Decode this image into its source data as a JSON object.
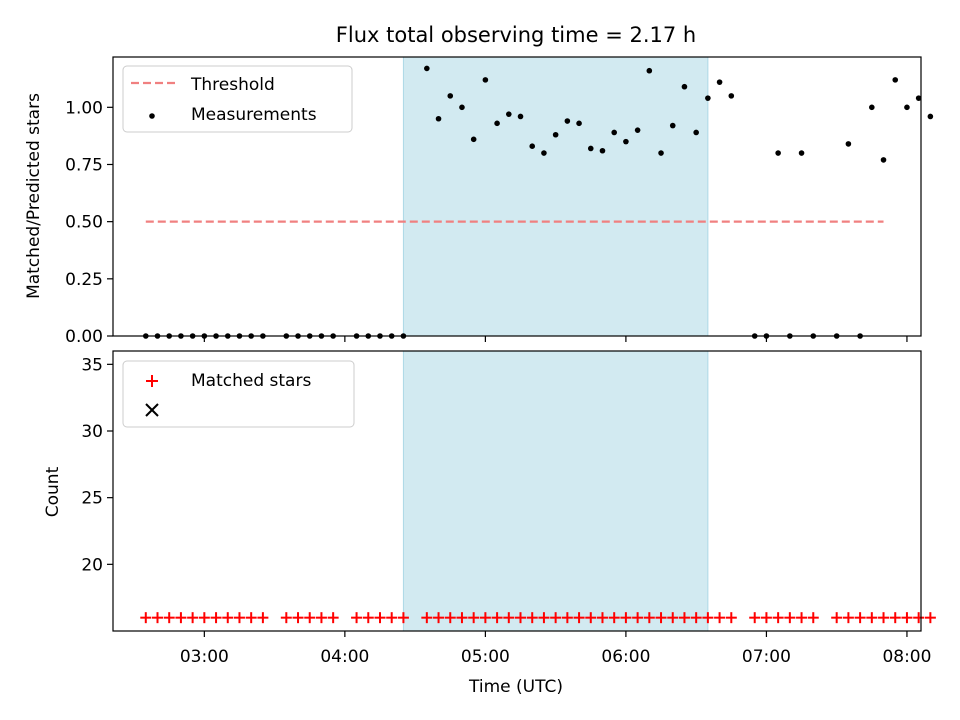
{
  "title": "Flux total observing time = 2.17 h",
  "chart_data": [
    {
      "type": "scatter",
      "ylabel": "Matched/Predicted stars",
      "ylim": [
        0,
        1.22
      ],
      "yticks": [
        0.0,
        0.25,
        0.5,
        0.75,
        1.0
      ],
      "ytick_labels": [
        "0.00",
        "0.25",
        "0.50",
        "0.75",
        "1.00"
      ],
      "legend_position": "upper-left",
      "shaded_interval": {
        "start": "04:25",
        "end": "06:35",
        "color": "#add8e6"
      },
      "threshold": {
        "name": "Threshold",
        "value": 0.5,
        "x_start": "02:35",
        "x_end": "07:50",
        "color": "#f08080",
        "style": "dashed"
      },
      "series": [
        {
          "name": "Measurements",
          "color": "#000000",
          "marker": "dot",
          "x": [
            "02:35",
            "02:40",
            "02:45",
            "02:50",
            "02:55",
            "03:00",
            "03:05",
            "03:10",
            "03:15",
            "03:20",
            "03:25",
            "03:35",
            "03:40",
            "03:45",
            "03:50",
            "03:55",
            "04:05",
            "04:10",
            "04:15",
            "04:20",
            "04:25",
            "04:35",
            "04:40",
            "04:45",
            "04:50",
            "04:55",
            "05:00",
            "05:05",
            "05:10",
            "05:15",
            "05:20",
            "05:25",
            "05:30",
            "05:35",
            "05:40",
            "05:45",
            "05:50",
            "05:55",
            "06:00",
            "06:05",
            "06:10",
            "06:15",
            "06:20",
            "06:25",
            "06:30",
            "06:35",
            "06:40",
            "06:45",
            "06:55",
            "07:00",
            "07:05",
            "07:10",
            "07:15",
            "07:20",
            "07:30",
            "07:35",
            "07:40",
            "07:45",
            "07:50",
            "07:55",
            "08:00",
            "08:05",
            "08:10"
          ],
          "y": [
            0,
            0,
            0,
            0,
            0,
            0,
            0,
            0,
            0,
            0,
            0,
            0,
            0,
            0,
            0,
            0,
            0,
            0,
            0,
            0,
            0,
            1.17,
            0.95,
            1.05,
            1.0,
            0.86,
            1.12,
            0.93,
            0.97,
            0.96,
            0.83,
            0.8,
            0.88,
            0.94,
            0.93,
            0.82,
            0.81,
            0.89,
            0.85,
            0.9,
            1.16,
            0.8,
            0.92,
            1.09,
            0.89,
            1.04,
            1.11,
            1.05,
            0,
            0,
            0.8,
            0,
            0.8,
            0,
            0,
            0.84,
            0,
            1.0,
            0.77,
            1.12,
            1.0,
            1.04,
            0.96
          ]
        }
      ]
    },
    {
      "type": "scatter",
      "xlabel": "Time (UTC)",
      "ylabel": "Count",
      "ylim": [
        15,
        36
      ],
      "yticks": [
        20,
        25,
        30,
        35
      ],
      "xticks": [
        "03:00",
        "04:00",
        "05:00",
        "06:00",
        "07:00",
        "08:00"
      ],
      "xlim": [
        "02:21",
        "08:06"
      ],
      "legend_position": "upper-left",
      "shaded_interval": {
        "start": "04:25",
        "end": "06:35",
        "color": "#add8e6"
      },
      "series": [
        {
          "name": "Matched stars",
          "color": "#ff0000",
          "marker": "plus",
          "x": [
            "02:35",
            "02:40",
            "02:45",
            "02:50",
            "02:55",
            "03:00",
            "03:05",
            "03:10",
            "03:15",
            "03:20",
            "03:25",
            "03:35",
            "03:40",
            "03:45",
            "03:50",
            "03:55",
            "04:05",
            "04:10",
            "04:15",
            "04:20",
            "04:25",
            "04:35",
            "04:40",
            "04:45",
            "04:50",
            "04:55",
            "05:00",
            "05:05",
            "05:10",
            "05:15",
            "05:20",
            "05:25",
            "05:30",
            "05:35",
            "05:40",
            "05:45",
            "05:50",
            "05:55",
            "06:00",
            "06:05",
            "06:10",
            "06:15",
            "06:20",
            "06:25",
            "06:30",
            "06:35",
            "06:40",
            "06:45",
            "06:55",
            "07:00",
            "07:05",
            "07:10",
            "07:15",
            "07:20",
            "07:30",
            "07:35",
            "07:40",
            "07:45",
            "07:50",
            "07:55",
            "08:00",
            "08:05",
            "08:10"
          ],
          "y": [
            16,
            16,
            16,
            16,
            16,
            16,
            16,
            16,
            16,
            16,
            16,
            16,
            16,
            16,
            16,
            16,
            16,
            16,
            16,
            16,
            16,
            16,
            16,
            16,
            16,
            16,
            16,
            16,
            16,
            16,
            16,
            16,
            16,
            16,
            16,
            16,
            16,
            16,
            16,
            16,
            16,
            16,
            16,
            16,
            16,
            16,
            16,
            16,
            16,
            16,
            16,
            16,
            16,
            16,
            16,
            16,
            16,
            16,
            16,
            16,
            16,
            16,
            16
          ]
        }
      ]
    }
  ]
}
